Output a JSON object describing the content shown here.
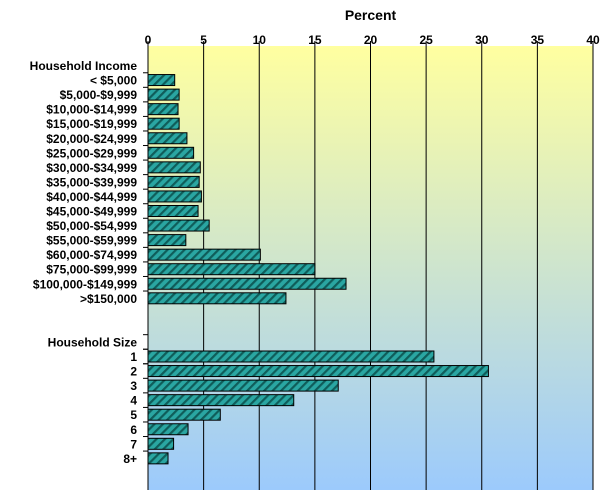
{
  "chart_data": {
    "type": "bar",
    "orientation": "horizontal",
    "title": "Percent",
    "x_axis_position": "top",
    "xlim": [
      0,
      40
    ],
    "xticks": [
      0,
      5,
      10,
      15,
      20,
      25,
      30,
      35,
      40
    ],
    "grid": true,
    "background_gradient": [
      "#ffffa0",
      "#9ccafc"
    ],
    "bar_color": "#2aa6a2",
    "bar_stripe_color": "#0f5d5a",
    "groups": [
      {
        "header": "Household Income",
        "categories": [
          "< $5,000",
          "$5,000-$9,999",
          "$10,000-$14,999",
          "$15,000-$19,999",
          "$20,000-$24,999",
          "$25,000-$29,999",
          "$30,000-$34,999",
          "$35,000-$39,999",
          "$40,000-$44,999",
          "$45,000-$49,999",
          "$50,000-$54,999",
          "$55,000-$59,999",
          "$60,000-$74,999",
          "$75,000-$99,999",
          "$100,000-$149,999",
          ">$150,000"
        ],
        "values": [
          2.4,
          2.8,
          2.7,
          2.8,
          3.5,
          4.1,
          4.7,
          4.6,
          4.8,
          4.5,
          5.5,
          3.4,
          10.1,
          15.0,
          17.8,
          12.4
        ]
      },
      {
        "header": "Household Size",
        "categories": [
          "1",
          "2",
          "3",
          "4",
          "5",
          "6",
          "7",
          "8+"
        ],
        "values": [
          25.7,
          30.6,
          17.1,
          13.1,
          6.5,
          3.6,
          2.3,
          1.8
        ]
      }
    ]
  }
}
